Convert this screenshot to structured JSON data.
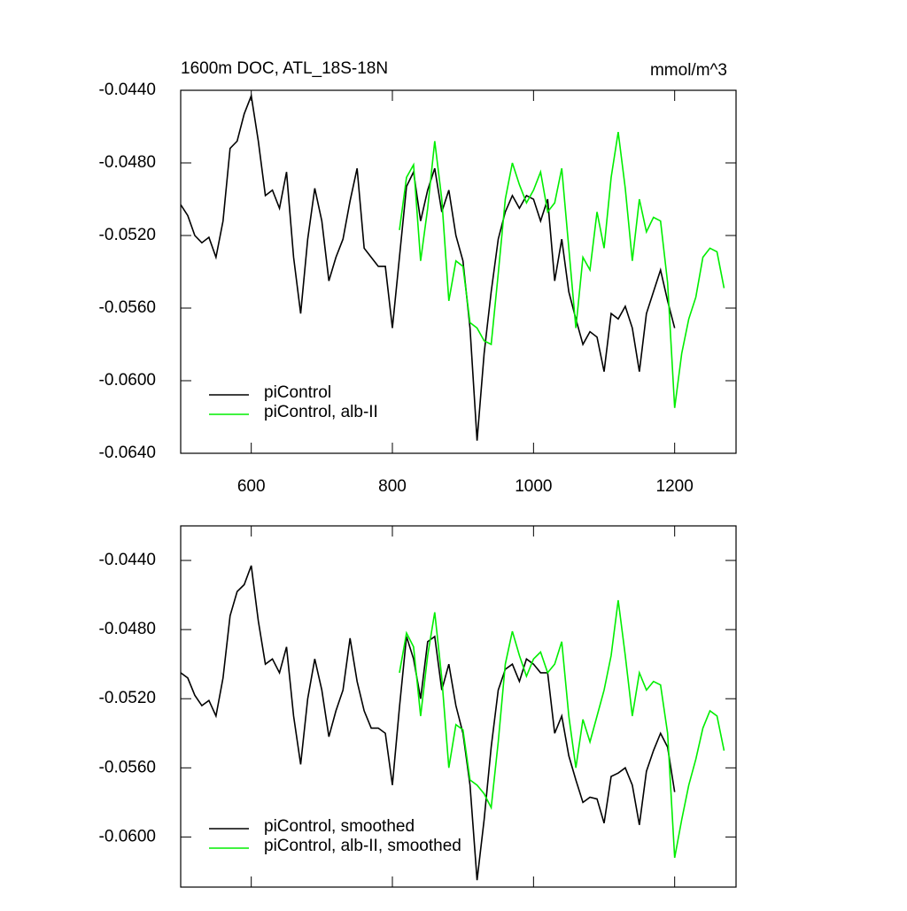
{
  "chart_data": [
    {
      "type": "line",
      "title": "1600m DOC, ATL_18S-18N",
      "units": "mmol/m^3",
      "x": [
        500,
        510,
        520,
        530,
        540,
        550,
        560,
        570,
        580,
        590,
        600,
        610,
        620,
        630,
        640,
        650,
        660,
        670,
        680,
        690,
        700,
        710,
        720,
        730,
        740,
        750,
        760,
        770,
        780,
        790,
        800,
        810,
        820,
        830,
        840,
        850,
        860,
        870,
        880,
        890,
        900,
        910,
        920,
        930,
        940,
        950,
        960,
        970,
        980,
        990,
        1000,
        1010,
        1020,
        1030,
        1040,
        1050,
        1060,
        1070,
        1080,
        1090,
        1100,
        1110,
        1120,
        1130,
        1140,
        1150,
        1160,
        1170,
        1180,
        1190,
        1200,
        1210,
        1220,
        1230,
        1240,
        1250,
        1260,
        1270
      ],
      "xlim": [
        500,
        1287
      ],
      "xticks": [
        600,
        800,
        1000,
        1200
      ],
      "ylim": [
        -0.064,
        -0.044
      ],
      "yticks": [
        {
          "value": -0.044,
          "label": "-0.0440"
        },
        {
          "value": -0.048,
          "label": "-0.0480"
        },
        {
          "value": -0.052,
          "label": "-0.0520"
        },
        {
          "value": -0.056,
          "label": "-0.0560"
        },
        {
          "value": -0.06,
          "label": "-0.0600"
        },
        {
          "value": -0.064,
          "label": "-0.0640"
        }
      ],
      "legend": "lower left",
      "series": [
        {
          "name": "piControl",
          "color": "#000000",
          "values": [
            -0.0503,
            -0.0509,
            -0.052,
            -0.0524,
            -0.0521,
            -0.0532,
            -0.0512,
            -0.0472,
            -0.0468,
            -0.0453,
            -0.0443,
            -0.0468,
            -0.0498,
            -0.0495,
            -0.0505,
            -0.0485,
            -0.0532,
            -0.0563,
            -0.0522,
            -0.0494,
            -0.0512,
            -0.0545,
            -0.0532,
            -0.0522,
            -0.0501,
            -0.0483,
            -0.0527,
            -0.0532,
            -0.0537,
            -0.0537,
            -0.0571,
            -0.0532,
            -0.0493,
            -0.0485,
            -0.0512,
            -0.0495,
            -0.0483,
            -0.0507,
            -0.0495,
            -0.052,
            -0.0534,
            -0.0571,
            -0.0633,
            -0.0585,
            -0.0551,
            -0.0522,
            -0.0507,
            -0.0498,
            -0.0505,
            -0.0498,
            -0.05,
            -0.0512,
            -0.05,
            -0.0545,
            -0.0522,
            -0.0551,
            -0.0566,
            -0.058,
            -0.0573,
            -0.0576,
            -0.0595,
            -0.0563,
            -0.0566,
            -0.0559,
            -0.0571,
            -0.0595,
            -0.0563,
            -0.0551,
            -0.0539,
            -0.0556,
            -0.0571,
            null,
            null,
            null,
            null,
            null,
            null,
            null
          ]
        },
        {
          "name": "piControl, alb-II",
          "color": "#00ee00",
          "values": [
            null,
            null,
            null,
            null,
            null,
            null,
            null,
            null,
            null,
            null,
            null,
            null,
            null,
            null,
            null,
            null,
            null,
            null,
            null,
            null,
            null,
            null,
            null,
            null,
            null,
            null,
            null,
            null,
            null,
            null,
            null,
            -0.0517,
            -0.0488,
            -0.0481,
            -0.0534,
            -0.0505,
            -0.0468,
            -0.05,
            -0.0556,
            -0.0534,
            -0.0537,
            -0.0568,
            -0.0571,
            -0.0578,
            -0.058,
            -0.0541,
            -0.05,
            -0.048,
            -0.0492,
            -0.0502,
            -0.0495,
            -0.0485,
            -0.0507,
            -0.0502,
            -0.0483,
            -0.0527,
            -0.0571,
            -0.0532,
            -0.0539,
            -0.0507,
            -0.0527,
            -0.0488,
            -0.0463,
            -0.0494,
            -0.0534,
            -0.05,
            -0.0518,
            -0.051,
            -0.0512,
            -0.0546,
            -0.0615,
            -0.0585,
            -0.0566,
            -0.0554,
            -0.0532,
            -0.0527,
            -0.0529,
            -0.0549
          ]
        }
      ]
    },
    {
      "type": "line",
      "x": [
        500,
        510,
        520,
        530,
        540,
        550,
        560,
        570,
        580,
        590,
        600,
        610,
        620,
        630,
        640,
        650,
        660,
        670,
        680,
        690,
        700,
        710,
        720,
        730,
        740,
        750,
        760,
        770,
        780,
        790,
        800,
        810,
        820,
        830,
        840,
        850,
        860,
        870,
        880,
        890,
        900,
        910,
        920,
        930,
        940,
        950,
        960,
        970,
        980,
        990,
        1000,
        1010,
        1020,
        1030,
        1040,
        1050,
        1060,
        1070,
        1080,
        1090,
        1100,
        1110,
        1120,
        1130,
        1140,
        1150,
        1160,
        1170,
        1180,
        1190,
        1200,
        1210,
        1220,
        1230,
        1240,
        1250,
        1260,
        1270
      ],
      "xlim": [
        500,
        1287
      ],
      "xticks": [
        600,
        800,
        1000,
        1200
      ],
      "ylim": [
        -0.0629,
        -0.042
      ],
      "yticks": [
        {
          "value": -0.044,
          "label": "-0.0440"
        },
        {
          "value": -0.048,
          "label": "-0.0480"
        },
        {
          "value": -0.052,
          "label": "-0.0520"
        },
        {
          "value": -0.056,
          "label": "-0.0560"
        },
        {
          "value": -0.06,
          "label": "-0.0600"
        }
      ],
      "legend": "lower left",
      "series": [
        {
          "name": "piControl, smoothed",
          "color": "#000000",
          "values": [
            -0.0505,
            -0.0508,
            -0.0518,
            -0.0524,
            -0.0521,
            -0.053,
            -0.0508,
            -0.0472,
            -0.0458,
            -0.0454,
            -0.0443,
            -0.0475,
            -0.05,
            -0.0497,
            -0.0505,
            -0.049,
            -0.053,
            -0.0558,
            -0.052,
            -0.0497,
            -0.0515,
            -0.0542,
            -0.0527,
            -0.0515,
            -0.0485,
            -0.051,
            -0.0527,
            -0.0537,
            -0.0537,
            -0.054,
            -0.057,
            -0.0525,
            -0.0484,
            -0.0497,
            -0.052,
            -0.0487,
            -0.0484,
            -0.0515,
            -0.05,
            -0.0524,
            -0.054,
            -0.057,
            -0.0625,
            -0.059,
            -0.0548,
            -0.0515,
            -0.0503,
            -0.05,
            -0.051,
            -0.0497,
            -0.05,
            -0.0505,
            -0.0505,
            -0.054,
            -0.053,
            -0.0553,
            -0.0567,
            -0.058,
            -0.0577,
            -0.0578,
            -0.0592,
            -0.0565,
            -0.0563,
            -0.056,
            -0.057,
            -0.0593,
            -0.0562,
            -0.055,
            -0.054,
            -0.0548,
            -0.0574,
            null,
            null,
            null,
            null,
            null,
            null,
            null
          ]
        },
        {
          "name": "piControl, alb-II, smoothed",
          "color": "#00ee00",
          "values": [
            null,
            null,
            null,
            null,
            null,
            null,
            null,
            null,
            null,
            null,
            null,
            null,
            null,
            null,
            null,
            null,
            null,
            null,
            null,
            null,
            null,
            null,
            null,
            null,
            null,
            null,
            null,
            null,
            null,
            null,
            null,
            -0.0505,
            -0.0482,
            -0.049,
            -0.053,
            -0.0495,
            -0.047,
            -0.0508,
            -0.056,
            -0.0535,
            -0.0538,
            -0.0567,
            -0.057,
            -0.0575,
            -0.0583,
            -0.0545,
            -0.05,
            -0.0481,
            -0.0495,
            -0.0507,
            -0.0497,
            -0.0493,
            -0.0505,
            -0.05,
            -0.0487,
            -0.053,
            -0.056,
            -0.0532,
            -0.0545,
            -0.053,
            -0.0515,
            -0.0495,
            -0.0463,
            -0.0495,
            -0.053,
            -0.0505,
            -0.0515,
            -0.051,
            -0.0512,
            -0.054,
            -0.0612,
            -0.059,
            -0.057,
            -0.0555,
            -0.0537,
            -0.0527,
            -0.053,
            -0.055
          ]
        }
      ]
    }
  ]
}
